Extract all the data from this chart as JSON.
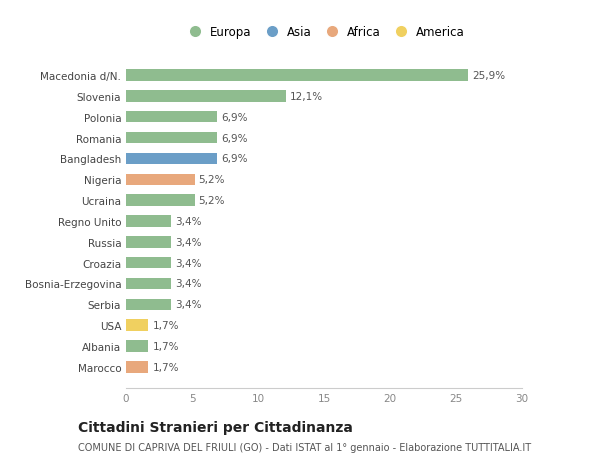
{
  "categories": [
    "Marocco",
    "Albania",
    "USA",
    "Serbia",
    "Bosnia-Erzegovina",
    "Croazia",
    "Russia",
    "Regno Unito",
    "Ucraina",
    "Nigeria",
    "Bangladesh",
    "Romania",
    "Polonia",
    "Slovenia",
    "Macedonia d/N."
  ],
  "values": [
    1.7,
    1.7,
    1.7,
    3.4,
    3.4,
    3.4,
    3.4,
    3.4,
    5.2,
    5.2,
    6.9,
    6.9,
    6.9,
    12.1,
    25.9
  ],
  "labels": [
    "1,7%",
    "1,7%",
    "1,7%",
    "3,4%",
    "3,4%",
    "3,4%",
    "3,4%",
    "3,4%",
    "5,2%",
    "5,2%",
    "6,9%",
    "6,9%",
    "6,9%",
    "12,1%",
    "25,9%"
  ],
  "colors": [
    "#E8A87C",
    "#8FBC8F",
    "#F0D060",
    "#8FBC8F",
    "#8FBC8F",
    "#8FBC8F",
    "#8FBC8F",
    "#8FBC8F",
    "#8FBC8F",
    "#E8A87C",
    "#6B9EC7",
    "#8FBC8F",
    "#8FBC8F",
    "#8FBC8F",
    "#8FBC8F"
  ],
  "continent_colors": {
    "Europa": "#8FBC8F",
    "Asia": "#6B9EC7",
    "Africa": "#E8A87C",
    "America": "#F0D060"
  },
  "xlim": [
    0,
    30
  ],
  "xticks": [
    0,
    5,
    10,
    15,
    20,
    25,
    30
  ],
  "title": "Cittadini Stranieri per Cittadinanza",
  "subtitle": "COMUNE DI CAPRIVA DEL FRIULI (GO) - Dati ISTAT al 1° gennaio - Elaborazione TUTTITALIA.IT",
  "background_color": "#ffffff",
  "bar_height": 0.55,
  "label_fontsize": 7.5,
  "ytick_fontsize": 7.5,
  "xtick_fontsize": 7.5,
  "title_fontsize": 10,
  "subtitle_fontsize": 7
}
